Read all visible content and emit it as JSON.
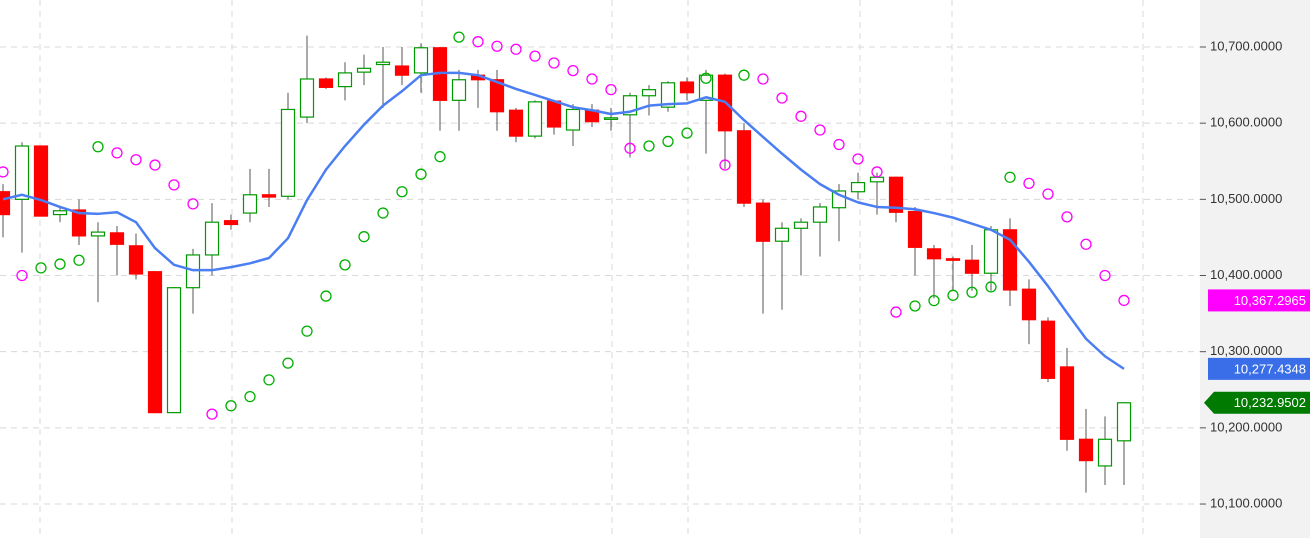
{
  "chart_data": {
    "type": "candlestick",
    "ylim": [
      10055.4,
      10761.7
    ],
    "yticks": [
      {
        "value": 10100,
        "label": "10,100.0000"
      },
      {
        "value": 10200,
        "label": "10,200.0000"
      },
      {
        "value": 10300,
        "label": "10,300.0000"
      },
      {
        "value": 10400,
        "label": "10,400.0000"
      },
      {
        "value": 10500,
        "label": "10,500.0000"
      },
      {
        "value": 10600,
        "label": "10,600.0000"
      },
      {
        "value": 10700,
        "label": "10,700.0000"
      }
    ],
    "grid": true,
    "up_color": "#009900",
    "down_color": "#ff0000",
    "wick_color": "#555555",
    "close_label_color": "#007a00",
    "open": [
      10510,
      10500,
      10570,
      10480,
      10486,
      10452,
      10456,
      10439,
      10405,
      10220,
      10384,
      10427,
      10472,
      10482,
      10506,
      10504,
      10608,
      10658,
      10648,
      10667,
      10677,
      10675,
      10666,
      10699,
      10630,
      10663,
      10657,
      10617,
      10583,
      10629,
      10591,
      10617,
      10605,
      10611,
      10636,
      10621,
      10654,
      10630,
      10663,
      10590,
      10495,
      10445,
      10462,
      10470,
      10489,
      10510,
      10523,
      10529,
      10484,
      10435,
      10422,
      10420,
      10403,
      10460,
      10382,
      10340,
      10280,
      10185,
      10150,
      10183
    ],
    "high": [
      10520,
      10575,
      10570,
      10490,
      10500,
      10470,
      10465,
      10455,
      10405,
      10385,
      10435,
      10495,
      10480,
      10540,
      10540,
      10640,
      10715,
      10660,
      10680,
      10690,
      10700,
      10700,
      10705,
      10700,
      10670,
      10670,
      10670,
      10620,
      10630,
      10630,
      10625,
      10625,
      10620,
      10640,
      10650,
      10655,
      10660,
      10670,
      10665,
      10600,
      10500,
      10470,
      10475,
      10495,
      10520,
      10535,
      10535,
      10530,
      10490,
      10440,
      10425,
      10440,
      10465,
      10475,
      10395,
      10345,
      10305,
      10225,
      10215,
      10233
    ],
    "low": [
      10450,
      10430,
      10478,
      10470,
      10440,
      10365,
      10400,
      10395,
      10220,
      10220,
      10350,
      10400,
      10460,
      10470,
      10490,
      10500,
      10600,
      10645,
      10630,
      10650,
      10620,
      10650,
      10640,
      10590,
      10590,
      10620,
      10590,
      10575,
      10580,
      10585,
      10570,
      10595,
      10590,
      10555,
      10610,
      10615,
      10630,
      10560,
      10540,
      10490,
      10350,
      10355,
      10400,
      10425,
      10445,
      10500,
      10480,
      10470,
      10400,
      10370,
      10380,
      10380,
      10380,
      10360,
      10310,
      10260,
      10170,
      10115,
      10125,
      10125
    ],
    "close": [
      10480,
      10570,
      10478,
      10485,
      10452,
      10457,
      10441,
      10402,
      10220,
      10384,
      10427,
      10470,
      10467,
      10506,
      10503,
      10618,
      10658,
      10647,
      10666,
      10672,
      10680,
      10663,
      10699,
      10630,
      10657,
      10657,
      10615,
      10583,
      10628,
      10595,
      10618,
      10602,
      10607,
      10636,
      10644,
      10653,
      10640,
      10663,
      10590,
      10495,
      10445,
      10462,
      10470,
      10490,
      10511,
      10522,
      10529,
      10483,
      10437,
      10422,
      10420,
      10403,
      10460,
      10381,
      10342,
      10265,
      10185,
      10157,
      10185,
      10232.9502
    ],
    "close_labels": [
      null,
      null,
      null,
      null,
      null,
      null,
      null,
      null,
      null,
      null,
      null,
      null,
      null,
      null,
      null,
      null,
      null,
      null,
      null,
      null,
      null,
      null,
      null,
      null,
      null,
      null,
      null,
      null,
      null,
      null,
      null,
      null,
      null,
      null,
      null,
      null,
      null,
      null,
      null,
      null,
      null,
      null,
      null,
      null,
      null,
      null,
      null,
      null,
      null,
      null,
      null,
      null,
      null,
      null,
      null,
      null,
      null,
      null,
      null,
      "10,232.9502"
    ],
    "series": [
      {
        "type": "line",
        "color": "#4a7ef2",
        "label_color": "#3a6ee8",
        "values": [
          10500,
          10506,
          10499,
          10490,
          10482,
          10481,
          10483,
          10470,
          10436,
          10414,
          10407,
          10407,
          10411,
          10416,
          10423,
          10449,
          10499,
          10539,
          10570,
          10598,
          10623,
          10642,
          10663,
          10666,
          10666,
          10663,
          10654,
          10645,
          10637,
          10629,
          10621,
          10617,
          10612,
          10615,
          10623,
          10625,
          10626,
          10634,
          10628,
          10604,
          10582,
          10560,
          10539,
          10520,
          10506,
          10496,
          10490,
          10489,
          10487,
          10482,
          10476,
          10468,
          10460,
          10447,
          10418,
          10386,
          10351,
          10317,
          10294,
          10277.4348
        ],
        "value_labels": [
          null,
          null,
          null,
          null,
          null,
          null,
          null,
          null,
          null,
          null,
          null,
          null,
          null,
          null,
          null,
          null,
          null,
          null,
          null,
          null,
          null,
          null,
          null,
          null,
          null,
          null,
          null,
          null,
          null,
          null,
          null,
          null,
          null,
          null,
          null,
          null,
          null,
          null,
          null,
          null,
          null,
          null,
          null,
          null,
          null,
          null,
          null,
          null,
          null,
          null,
          null,
          null,
          null,
          null,
          null,
          null,
          null,
          null,
          null,
          "10,277.4348"
        ]
      },
      {
        "type": "dots",
        "color": "#00b000",
        "values": [
          null,
          null,
          10410,
          10415,
          10420,
          10569,
          null,
          null,
          null,
          null,
          null,
          null,
          10229,
          10241,
          10263,
          10285,
          10327,
          10373,
          10414,
          10451,
          10482,
          10510,
          10533,
          10556,
          10713,
          null,
          null,
          null,
          null,
          null,
          null,
          null,
          null,
          null,
          10570,
          10576,
          10587,
          10659,
          null,
          10663,
          null,
          null,
          null,
          null,
          null,
          null,
          null,
          null,
          10360,
          10367,
          10374,
          10378,
          10385,
          10529,
          null,
          null,
          null,
          null,
          null,
          null
        ]
      },
      {
        "type": "dots",
        "color": "#ff00ff",
        "label_color": "#ff00ff",
        "values": [
          10536,
          10400,
          null,
          null,
          null,
          null,
          10561,
          10552,
          10545,
          10519,
          10494,
          10218,
          null,
          null,
          null,
          null,
          null,
          null,
          null,
          null,
          null,
          null,
          null,
          null,
          null,
          10707,
          10701,
          10697,
          10688,
          10679,
          10669,
          10658,
          10644,
          10567,
          null,
          null,
          null,
          null,
          10545,
          null,
          10658,
          10633,
          10609,
          10591,
          10572,
          10553,
          10536,
          10352,
          null,
          null,
          null,
          null,
          null,
          null,
          10521,
          10507,
          10477,
          10441,
          10400,
          10367.2965
        ],
        "value_labels": [
          null,
          null,
          null,
          null,
          null,
          null,
          null,
          null,
          null,
          null,
          null,
          null,
          null,
          null,
          null,
          null,
          null,
          null,
          null,
          null,
          null,
          null,
          null,
          null,
          null,
          null,
          null,
          null,
          null,
          null,
          null,
          null,
          null,
          null,
          null,
          null,
          null,
          null,
          null,
          null,
          null,
          null,
          null,
          null,
          null,
          null,
          null,
          null,
          null,
          null,
          null,
          null,
          null,
          null,
          null,
          null,
          null,
          null,
          null,
          "10,367.2965"
        ]
      }
    ]
  }
}
